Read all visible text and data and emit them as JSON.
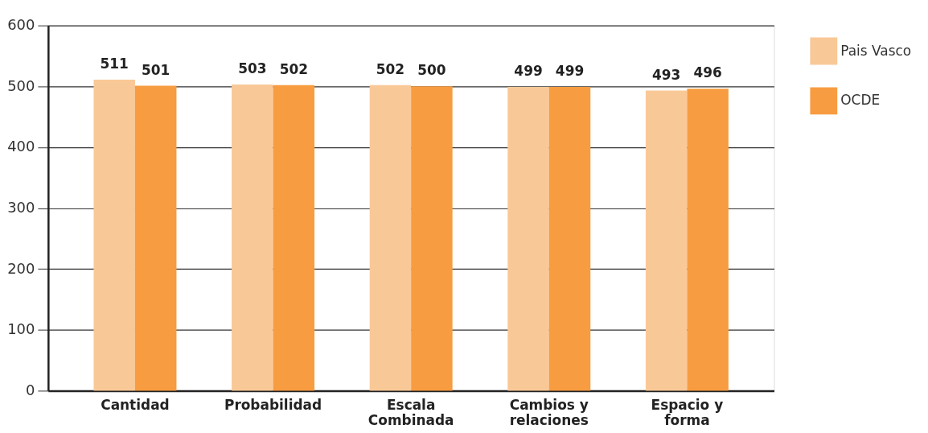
{
  "chart_data": {
    "type": "bar",
    "categories": [
      "Cantidad",
      "Probabilidad",
      "Escala Combinada",
      "Cambios y relaciones",
      "Espacio y forma"
    ],
    "series": [
      {
        "name": "Pais Vasco",
        "color": "#f9c897",
        "values": [
          511,
          503,
          502,
          499,
          493
        ]
      },
      {
        "name": "OCDE",
        "color": "#f79c40",
        "values": [
          501,
          502,
          500,
          499,
          496
        ]
      }
    ],
    "ylim": [
      0,
      600
    ],
    "yticks": [
      0,
      100,
      200,
      300,
      400,
      500,
      600
    ],
    "grid": "y",
    "legend": "top right",
    "data_labels": true
  }
}
